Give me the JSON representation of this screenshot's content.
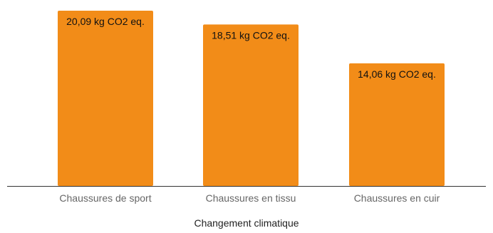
{
  "chart_data": {
    "type": "bar",
    "categories": [
      "Chaussures de sport",
      "Chaussures en tissu",
      "Chaussures en cuir"
    ],
    "values": [
      20.09,
      18.51,
      14.06
    ],
    "data_labels": [
      "20,09 kg CO2 eq.",
      "18,51 kg CO2 eq.",
      "14,06 kg CO2 eq."
    ],
    "title": "",
    "xlabel": "Changement climatique",
    "ylabel": "",
    "ylim": [
      0,
      20.09
    ],
    "grid": false,
    "legend": "none",
    "bar_color": "#f28c18",
    "axis_color": "#333333"
  }
}
